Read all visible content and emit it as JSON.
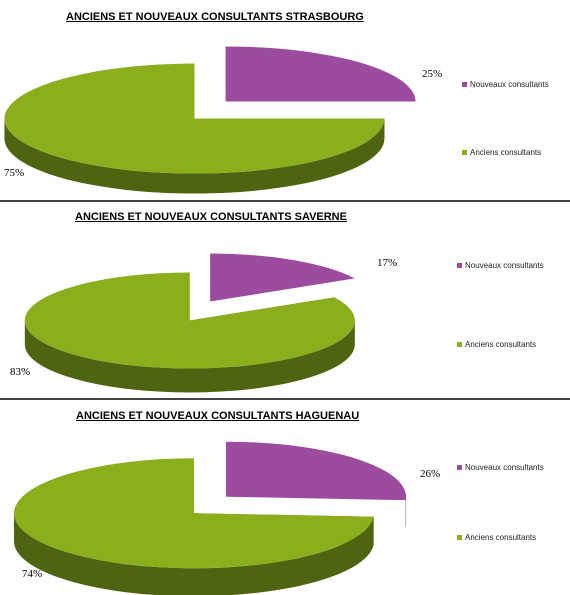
{
  "colors": {
    "new_top": "#9B4C9E",
    "new_side": "#4A1E4B",
    "old_top": "#8BAE1C",
    "old_side": "#4F6410"
  },
  "chart_data": [
    {
      "type": "pie",
      "title": "ANCIENS ET NOUVEAUX CONSULTANTS STRASBOURG",
      "series": [
        {
          "name": "Nouveaux consultants",
          "value": 25,
          "label": "25%"
        },
        {
          "name": "Anciens consultants",
          "value": 75,
          "label": "75%"
        }
      ],
      "legend": [
        "Nouveaux consultants",
        "Anciens consultants"
      ],
      "legend_position": "right",
      "exploded": true
    },
    {
      "type": "pie",
      "title": "ANCIENS ET NOUVEAUX CONSULTANTS SAVERNE",
      "series": [
        {
          "name": "Nouveaux consultants",
          "value": 17,
          "label": "17%"
        },
        {
          "name": "Anciens consultants",
          "value": 83,
          "label": "83%"
        }
      ],
      "legend": [
        "Nouveaux consultants",
        "Anciens consultants"
      ],
      "legend_position": "right",
      "exploded": true
    },
    {
      "type": "pie",
      "title": "ANCIENS ET NOUVEAUX CONSULTANTS HAGUENAU",
      "series": [
        {
          "name": "Nouveaux consultants",
          "value": 26,
          "label": "26%"
        },
        {
          "name": "Anciens consultants",
          "value": 74,
          "label": "74%"
        }
      ],
      "legend": [
        "Nouveaux consultants",
        "Anciens consultants"
      ],
      "legend_position": "right",
      "exploded": true
    }
  ]
}
